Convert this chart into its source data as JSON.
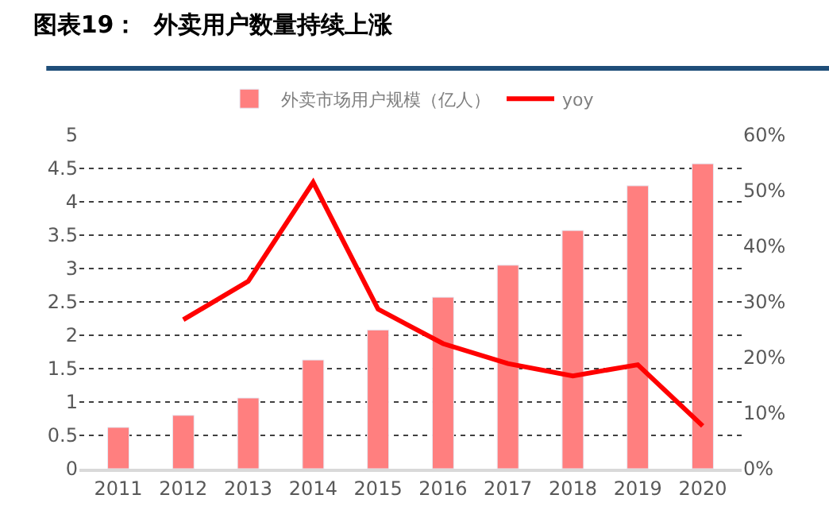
{
  "chart_data": {
    "type": "bar",
    "title": "图表19：  外卖用户数量持续上涨",
    "categories": [
      "2011",
      "2012",
      "2013",
      "2014",
      "2015",
      "2016",
      "2017",
      "2018",
      "2019",
      "2020"
    ],
    "series": [
      {
        "name": "外卖市场用户规模（亿人）",
        "color": "#ff7f7f",
        "values": [
          0.62,
          0.8,
          1.06,
          1.63,
          2.08,
          2.57,
          3.05,
          3.57,
          4.24,
          4.57
        ]
      },
      {
        "name": "yoy",
        "type": "line",
        "axis": "y2",
        "color": "#ff0000",
        "values": [
          null,
          26.8,
          33.7,
          51.5,
          28.7,
          22.5,
          18.9,
          16.7,
          18.7,
          7.7
        ]
      }
    ],
    "ylim": [
      0,
      5
    ],
    "yticks": [
      0,
      0.5,
      1,
      1.5,
      2,
      2.5,
      3,
      3.5,
      4,
      4.5,
      5
    ],
    "y2lim": [
      0,
      60
    ],
    "y2ticks": [
      {
        "value": 0,
        "label": "0%"
      },
      {
        "value": 10,
        "label": "10%"
      },
      {
        "value": 20,
        "label": "20%"
      },
      {
        "value": 30,
        "label": "30%"
      },
      {
        "value": 40,
        "label": "40%"
      },
      {
        "value": 50,
        "label": "50%"
      },
      {
        "value": 60,
        "label": "60%"
      }
    ],
    "grid": "y",
    "legend": "top",
    "marker": "none",
    "line_style": "solid"
  }
}
